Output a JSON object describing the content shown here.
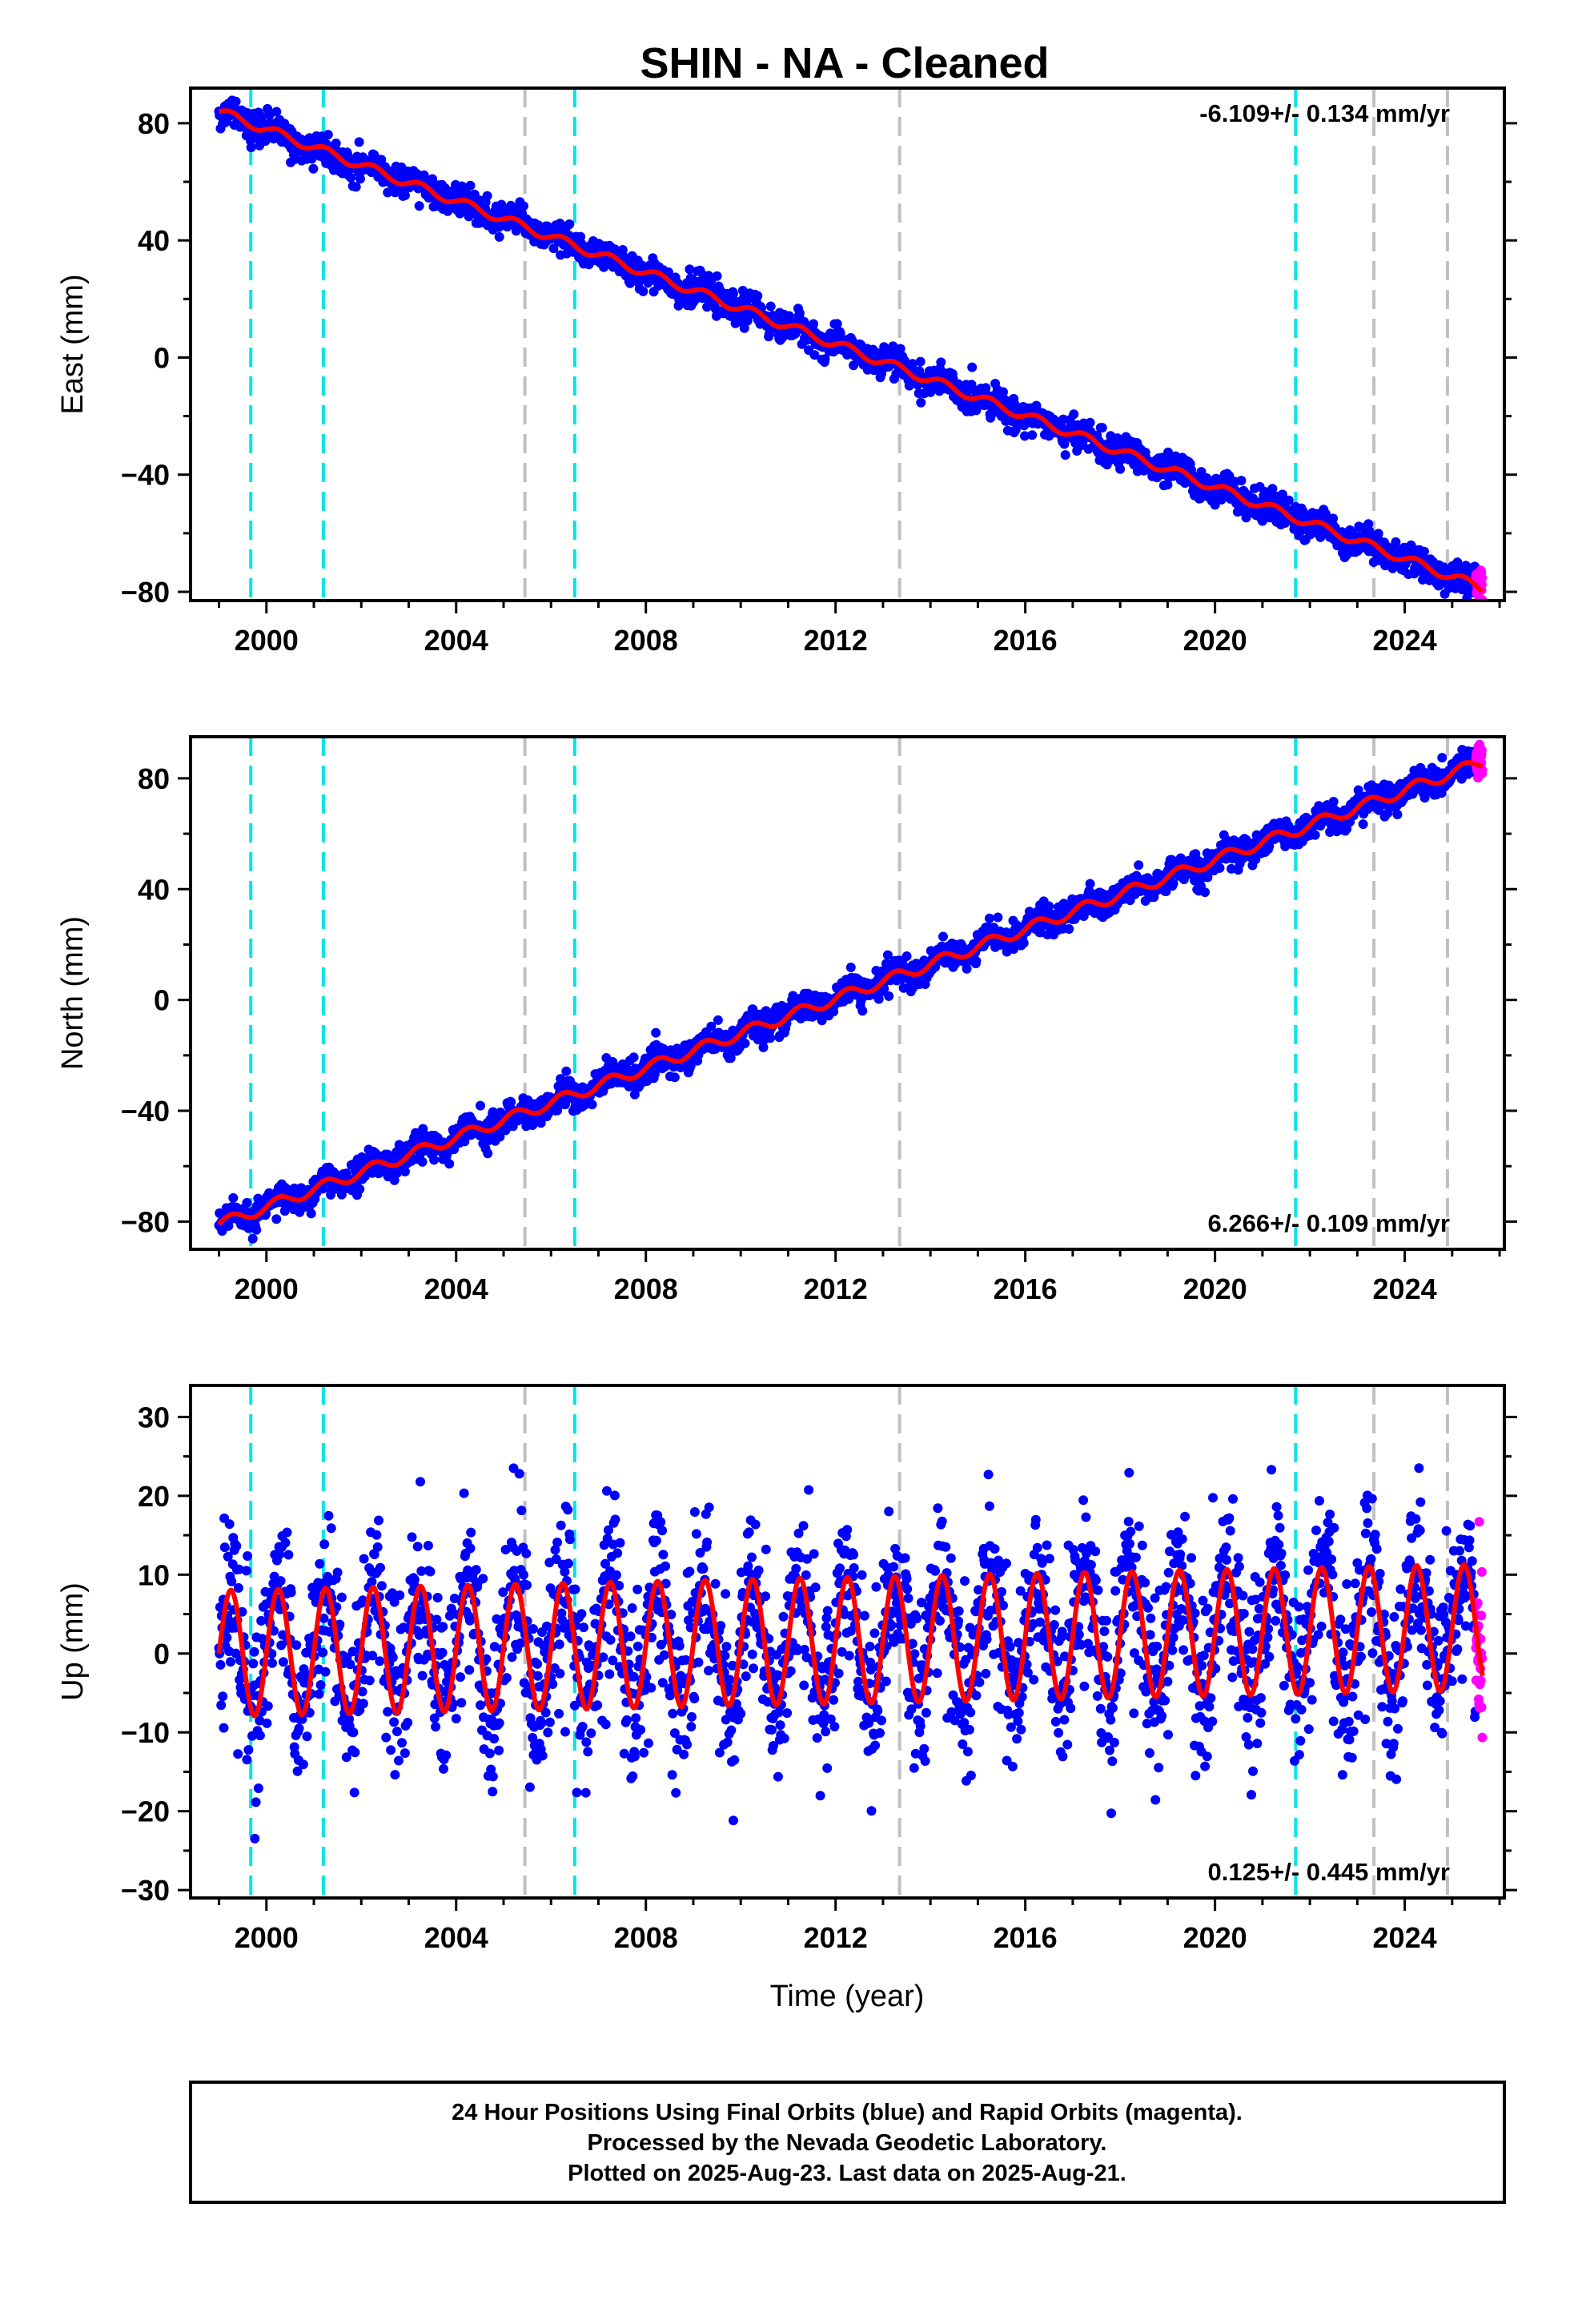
{
  "title": "SHIN  - NA - Cleaned",
  "colors": {
    "final_orbits": "#0000ff",
    "rapid_orbits": "#ff00ff",
    "model": "#ff0000",
    "event_cyan": "#00e5e5",
    "event_gray": "#c0c0c0"
  },
  "chart_data": [
    {
      "type": "scatter",
      "component": "east",
      "ylabel": "East (mm)",
      "xlabel": "",
      "xlim": [
        1998.4,
        2026.1
      ],
      "ylim": [
        -83,
        92
      ],
      "yticks": [
        -80,
        -40,
        0,
        40,
        80
      ],
      "xticks": [
        2000,
        2004,
        2008,
        2012,
        2016,
        2020,
        2024
      ],
      "rate_label": "-6.109+/- 0.134 mm/yr",
      "rate_position": "top-right",
      "series": [
        {
          "kind": "final_orbits_points",
          "start": 1999.0,
          "end": 2025.5,
          "value_at_start": 84,
          "rate_mm_per_yr": -6.109,
          "scatter_mm": 2.5
        },
        {
          "kind": "rapid_orbits_points",
          "start": 2025.5,
          "end": 2025.64,
          "value_at_start": -77,
          "scatter_mm": 2.5
        },
        {
          "kind": "model_line",
          "start": 1999.0,
          "end": 2025.64,
          "value_at_start": 84,
          "rate_mm_per_yr": -6.109,
          "seasonal_amplitude_mm": 1.5
        }
      ]
    },
    {
      "type": "scatter",
      "component": "north",
      "ylabel": "North (mm)",
      "xlabel": "",
      "xlim": [
        1998.4,
        2026.1
      ],
      "ylim": [
        -90,
        95
      ],
      "yticks": [
        -80,
        -40,
        0,
        40,
        80
      ],
      "xticks": [
        2000,
        2004,
        2008,
        2012,
        2016,
        2020,
        2024
      ],
      "rate_label": "6.266+/- 0.109 mm/yr",
      "rate_position": "bottom-right",
      "series": [
        {
          "kind": "final_orbits_points",
          "start": 1999.0,
          "end": 2025.5,
          "value_at_start": -81,
          "rate_mm_per_yr": 6.266,
          "scatter_mm": 2.5
        },
        {
          "kind": "rapid_orbits_points",
          "start": 2025.5,
          "end": 2025.64,
          "value_at_start": 86,
          "scatter_mm": 2.5
        },
        {
          "kind": "model_line",
          "start": 1999.0,
          "end": 2025.64,
          "value_at_start": -81,
          "rate_mm_per_yr": 6.266,
          "seasonal_amplitude_mm": 2.0
        }
      ]
    },
    {
      "type": "scatter",
      "component": "up",
      "ylabel": "Up (mm)",
      "xlabel": "Time (year)",
      "xlim": [
        1998.4,
        2026.1
      ],
      "ylim": [
        -31,
        34
      ],
      "yticks": [
        -30,
        -20,
        -10,
        0,
        10,
        20,
        30
      ],
      "xticks": [
        2000,
        2004,
        2008,
        2012,
        2016,
        2020,
        2024
      ],
      "rate_label": "0.125+/- 0.445 mm/yr",
      "rate_position": "bottom-right",
      "series": [
        {
          "kind": "final_orbits_points",
          "start": 1999.0,
          "end": 2025.5,
          "value_at_start": 0,
          "rate_mm_per_yr": 0.125,
          "scatter_mm": 5.5
        },
        {
          "kind": "rapid_orbits_points",
          "start": 2025.5,
          "end": 2025.64,
          "value_at_start": 0,
          "scatter_mm": 5.0
        },
        {
          "kind": "model_line",
          "start": 1999.0,
          "end": 2025.64,
          "value_at_start": 0,
          "rate_mm_per_yr": 0.125,
          "seasonal_amplitude_mm": 8.0
        }
      ]
    }
  ],
  "events": {
    "cyan": [
      1999.67,
      2001.2,
      2006.5,
      2021.7
    ],
    "gray": [
      2005.45,
      2013.35,
      2023.35,
      2024.9
    ]
  },
  "caption": {
    "line1": "24 Hour Positions Using Final Orbits (blue) and Rapid Orbits (magenta).",
    "line2": "Processed by the Nevada Geodetic Laboratory.",
    "line3": "Plotted on 2025-Aug-23. Last data on 2025-Aug-21."
  }
}
